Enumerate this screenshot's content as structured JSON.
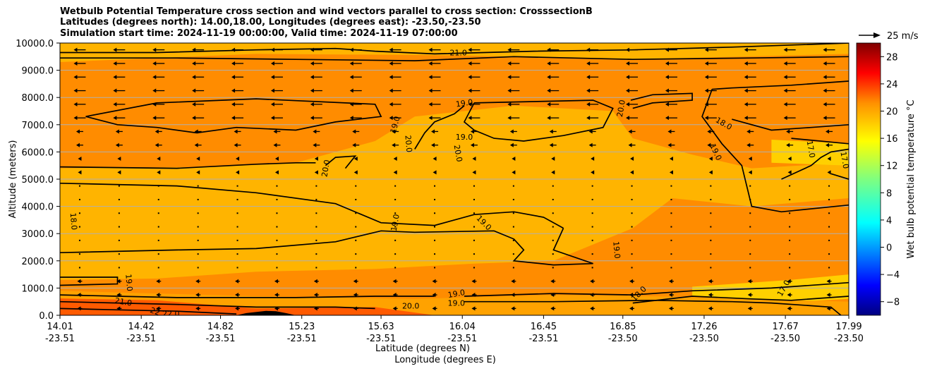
{
  "title": {
    "line1": "Wetbulb Potential Temperature cross section and wind vectors parallel to cross section: CrosssectionB",
    "line2": "Latitudes (degrees north): 14.00,18.00, Longitudes (degrees east): -23.50,-23.50",
    "line3": "Simulation start time: 2024-11-19 00:00:00, Valid time: 2024-11-19 07:00:00"
  },
  "chart_data": {
    "type": "heatmap",
    "subtype": "filled contour cross-section with wind vectors",
    "ylabel": "Altitude (meters)",
    "xlabel_line1": "Latitude (degrees N)",
    "xlabel_line2": "Longitude (degrees E)",
    "ylim": [
      0,
      10000
    ],
    "yticks": [
      "0.0",
      "1000.0",
      "2000.0",
      "3000.0",
      "4000.0",
      "5000.0",
      "6000.0",
      "7000.0",
      "8000.0",
      "9000.0",
      "10000.0"
    ],
    "ytick_values": [
      0,
      1000,
      2000,
      3000,
      4000,
      5000,
      6000,
      7000,
      8000,
      9000,
      10000
    ],
    "xlim": [
      14.01,
      17.99
    ],
    "xticks": [
      {
        "lat": "14.01",
        "lon": "-23.51"
      },
      {
        "lat": "14.42",
        "lon": "-23.51"
      },
      {
        "lat": "14.82",
        "lon": "-23.51"
      },
      {
        "lat": "15.23",
        "lon": "-23.51"
      },
      {
        "lat": "15.63",
        "lon": "-23.51"
      },
      {
        "lat": "16.04",
        "lon": "-23.51"
      },
      {
        "lat": "16.45",
        "lon": "-23.51"
      },
      {
        "lat": "16.85",
        "lon": "-23.50"
      },
      {
        "lat": "17.26",
        "lon": "-23.50"
      },
      {
        "lat": "17.67",
        "lon": "-23.50"
      },
      {
        "lat": "17.99",
        "lon": "-23.50"
      }
    ],
    "xtick_values": [
      14.01,
      14.42,
      14.82,
      15.23,
      15.63,
      16.04,
      16.45,
      16.85,
      17.26,
      17.67,
      17.99
    ],
    "grid": "horizontal",
    "colorbar": {
      "label": "Wet bulb potential temperature $^\\circ$C",
      "label_text": "Wet bulb potential temperature °C",
      "ticks": [
        "−8",
        "−4",
        "0",
        "4",
        "8",
        "12",
        "16",
        "20",
        "24",
        "28"
      ],
      "tick_values": [
        -8,
        -4,
        0,
        4,
        8,
        12,
        16,
        20,
        24,
        28
      ],
      "range": [
        -10,
        30
      ],
      "colormap": "jet"
    },
    "quiver_key": {
      "label": "25 m/s",
      "speed": 25
    },
    "contour_labels": [
      {
        "text": "21.0",
        "lat": 16.02,
        "alt": 9650,
        "rot": 0
      },
      {
        "text": "19.0",
        "lat": 16.05,
        "alt": 7800,
        "rot": -8
      },
      {
        "text": "19.0",
        "lat": 16.05,
        "alt": 6550,
        "rot": 0
      },
      {
        "text": "19.0",
        "lat": 15.7,
        "alt": 7000,
        "rot": -75
      },
      {
        "text": "20.0",
        "lat": 15.77,
        "alt": 6300,
        "rot": 85
      },
      {
        "text": "20.0",
        "lat": 16.02,
        "alt": 5950,
        "rot": 80
      },
      {
        "text": "20.0",
        "lat": 15.35,
        "alt": 5400,
        "rot": -80
      },
      {
        "text": "20.0",
        "lat": 16.84,
        "alt": 7600,
        "rot": -80
      },
      {
        "text": "18.0",
        "lat": 17.36,
        "alt": 7050,
        "rot": 30
      },
      {
        "text": "19.0",
        "lat": 17.32,
        "alt": 6000,
        "rot": 65
      },
      {
        "text": "17.0",
        "lat": 17.8,
        "alt": 6100,
        "rot": 80
      },
      {
        "text": "17.0",
        "lat": 17.97,
        "alt": 5700,
        "rot": 80
      },
      {
        "text": "18.0",
        "lat": 14.08,
        "alt": 3450,
        "rot": 85
      },
      {
        "text": "19.0",
        "lat": 15.7,
        "alt": 3400,
        "rot": -80
      },
      {
        "text": "19.0",
        "lat": 16.15,
        "alt": 3400,
        "rot": 45
      },
      {
        "text": "19.0",
        "lat": 16.82,
        "alt": 2400,
        "rot": 85
      },
      {
        "text": "19.0",
        "lat": 14.36,
        "alt": 1200,
        "rot": 85
      },
      {
        "text": "19.0",
        "lat": 16.01,
        "alt": 800,
        "rot": -10
      },
      {
        "text": "19.0",
        "lat": 16.01,
        "alt": 450,
        "rot": 0
      },
      {
        "text": "20.0",
        "lat": 15.78,
        "alt": 350,
        "rot": 0
      },
      {
        "text": "21.0",
        "lat": 14.33,
        "alt": 500,
        "rot": 10
      },
      {
        "text": "22",
        "lat": 14.49,
        "alt": 150,
        "rot": 20
      },
      {
        "text": "22.0",
        "lat": 14.57,
        "alt": 60,
        "rot": 0
      },
      {
        "text": "18.0",
        "lat": 16.93,
        "alt": 800,
        "rot": -45
      },
      {
        "text": "17.0",
        "lat": 17.66,
        "alt": 1000,
        "rot": -60
      }
    ]
  },
  "colors": {
    "background": "#ff8c00",
    "band_warm": "#ffa200",
    "band_mid": "#ffb400",
    "band_cool": "#ffd000",
    "surface_warm": "#ff5a00",
    "terrain": "#000000",
    "vector": "#000000",
    "grid": "#b0b0b0"
  }
}
